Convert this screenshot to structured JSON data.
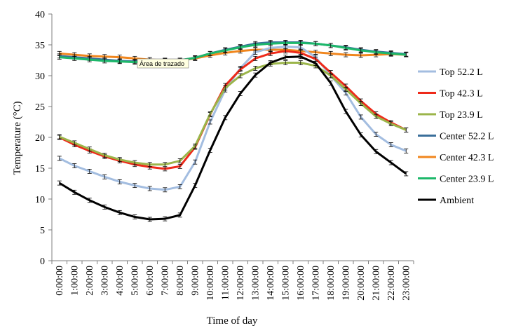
{
  "chart_data": {
    "type": "line",
    "xlabel": "Time of day",
    "ylabel": "Temperature (°C)",
    "ylim": [
      0,
      40
    ],
    "ytick_step": 5,
    "yticks": [
      "0",
      "5",
      "10",
      "15",
      "20",
      "25",
      "30",
      "35",
      "40"
    ],
    "grid": false,
    "legend_position": "right",
    "tooltip": "Área de trazado",
    "categories": [
      "0:00:00",
      "1:00:00",
      "2:00:00",
      "3:00:00",
      "4:00:00",
      "5:00:00",
      "6:00:00",
      "7:00:00",
      "8:00:00",
      "9:00:00",
      "10:00:00",
      "11:00:00",
      "12:00:00",
      "13:00:00",
      "14:00:00",
      "15:00:00",
      "16:00:00",
      "17:00:00",
      "18:00:00",
      "19:00:00",
      "20:00:00",
      "21:00:00",
      "22:00:00",
      "23:00:00"
    ],
    "series": [
      {
        "name": "Center 42.3 L",
        "color": "#f0861e",
        "values": [
          33.6,
          33.4,
          33.2,
          33.1,
          33.0,
          32.8,
          32.6,
          32.5,
          32.5,
          32.8,
          33.3,
          33.7,
          34.0,
          34.2,
          34.2,
          34.2,
          34.0,
          33.8,
          33.6,
          33.4,
          33.3,
          33.4,
          33.5,
          33.4
        ]
      },
      {
        "name": "Center 52.2 L",
        "color": "#3a6f9a",
        "values": [
          33.2,
          33.0,
          32.8,
          32.6,
          32.4,
          32.3,
          32.4,
          32.5,
          32.5,
          32.9,
          33.6,
          34.2,
          34.7,
          35.2,
          35.4,
          35.4,
          35.4,
          35.2,
          34.9,
          34.6,
          34.2,
          33.9,
          33.7,
          33.5
        ]
      },
      {
        "name": "Center 23.9 L",
        "color": "#1db86a",
        "values": [
          33.0,
          32.8,
          32.6,
          32.4,
          32.3,
          32.2,
          32.3,
          32.4,
          32.5,
          32.9,
          33.6,
          34.1,
          34.6,
          35.0,
          35.2,
          35.3,
          35.3,
          35.2,
          34.9,
          34.5,
          34.1,
          33.8,
          33.6,
          33.4
        ]
      },
      {
        "name": "Top 52.2 L",
        "color": "#a3bde0",
        "values": [
          16.6,
          15.4,
          14.5,
          13.6,
          12.8,
          12.2,
          11.7,
          11.5,
          12.0,
          16.0,
          22.5,
          27.7,
          31.2,
          33.8,
          34.5,
          34.7,
          34.6,
          33.0,
          30.0,
          27.2,
          23.3,
          20.5,
          18.8,
          17.8
        ]
      },
      {
        "name": "Top 42.3 L",
        "color": "#ee2a1a",
        "values": [
          20.0,
          18.8,
          17.8,
          16.9,
          16.2,
          15.6,
          15.2,
          14.9,
          15.3,
          18.4,
          23.7,
          28.4,
          31.0,
          32.8,
          33.6,
          34.0,
          33.7,
          32.7,
          30.5,
          28.3,
          25.9,
          23.8,
          22.4,
          21.2
        ]
      },
      {
        "name": "Top 23.9 L",
        "color": "#9bb54a",
        "values": [
          20.1,
          19.1,
          18.1,
          17.1,
          16.4,
          15.9,
          15.6,
          15.6,
          16.2,
          18.6,
          23.8,
          28.0,
          30.0,
          31.2,
          31.9,
          32.1,
          32.1,
          31.6,
          30.0,
          27.8,
          25.5,
          23.4,
          22.2,
          21.2
        ]
      },
      {
        "name": "Ambient",
        "color": "#000000",
        "values": [
          12.6,
          11.1,
          9.8,
          8.7,
          7.8,
          7.1,
          6.7,
          6.8,
          7.4,
          12.2,
          17.9,
          23.2,
          27.1,
          30.1,
          32.1,
          33.0,
          33.1,
          32.0,
          28.8,
          24.2,
          20.4,
          17.7,
          15.9,
          14.1
        ]
      }
    ],
    "legend_order": [
      "Top 52.2 L",
      "Top 42.3 L",
      "Top 23.9 L",
      "Center 52.2 L",
      "Center 42.3 L",
      "Center 23.9 L",
      "Ambient"
    ]
  }
}
